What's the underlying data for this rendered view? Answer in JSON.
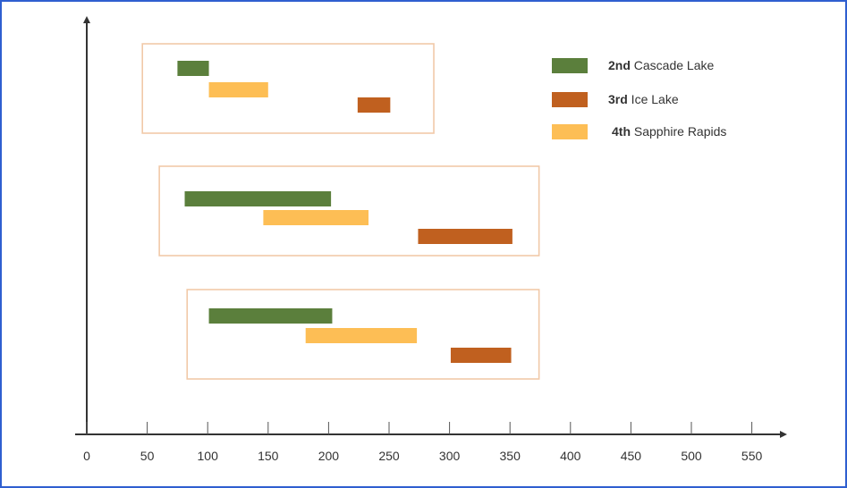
{
  "chart_data": {
    "type": "bar",
    "orientation": "horizontal-range",
    "title": "",
    "xlabel": "",
    "ylabel": "",
    "xlim": [
      0,
      580
    ],
    "x_ticks": [
      0,
      50,
      100,
      150,
      200,
      250,
      300,
      350,
      400,
      450,
      500,
      550
    ],
    "grid": false,
    "legend_position": "top-right",
    "series": [
      {
        "key": "cascade",
        "name_bold": "2nd",
        "name_rest": "Cascade Lake",
        "color": "#5b7f3c"
      },
      {
        "key": "ice",
        "name_bold": "3rd",
        "name_rest": "Ice Lake",
        "color": "#c0601f"
      },
      {
        "key": "sapphire",
        "name_bold": "4th",
        "name_rest": "Sapphire Rapids",
        "color": "#fdbe55"
      }
    ],
    "groups": [
      {
        "box_range": [
          46,
          287
        ],
        "bars": [
          {
            "series": "cascade",
            "start": 75,
            "end": 101
          },
          {
            "series": "sapphire",
            "start": 101,
            "end": 150
          },
          {
            "series": "ice",
            "start": 224,
            "end": 251
          }
        ]
      },
      {
        "box_range": [
          60,
          374
        ],
        "bars": [
          {
            "series": "cascade",
            "start": 81,
            "end": 202
          },
          {
            "series": "sapphire",
            "start": 146,
            "end": 233
          },
          {
            "series": "ice",
            "start": 274,
            "end": 352
          }
        ]
      },
      {
        "box_range": [
          83,
          374
        ],
        "bars": [
          {
            "series": "cascade",
            "start": 101,
            "end": 203
          },
          {
            "series": "sapphire",
            "start": 181,
            "end": 273
          },
          {
            "series": "ice",
            "start": 301,
            "end": 351
          }
        ]
      }
    ]
  }
}
